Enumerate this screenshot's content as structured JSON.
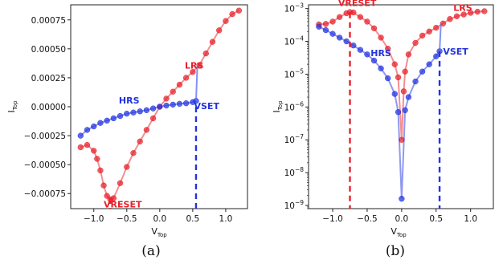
{
  "chart_data": [
    {
      "type": "scatter",
      "caption": "(a)",
      "xlabel": "V",
      "xlabel_sub": "Top",
      "ylabel": "I",
      "ylabel_sub": "Top",
      "xlim": [
        -1.35,
        1.33
      ],
      "ylim": [
        -0.00088,
        0.00088
      ],
      "yscale": "linear",
      "grid": false,
      "xticks": [
        -1.0,
        -0.5,
        0.0,
        0.5,
        1.0
      ],
      "xtick_labels": [
        "−1.0",
        "−0.5",
        "0.0",
        "0.5",
        "1.0"
      ],
      "yticks": [
        -0.00075,
        -0.0005,
        -0.00025,
        0,
        0.00025,
        0.0005,
        0.00075
      ],
      "ytick_labels": [
        "−0.00075",
        "−0.00050",
        "−0.00025",
        "0.00000",
        "0.00025",
        "0.00050",
        "0.00075"
      ],
      "series": [
        {
          "name": "LRS",
          "color": "#e8202a",
          "x": [
            -1.2,
            -1.1,
            -1.0,
            -0.95,
            -0.9,
            -0.85,
            -0.8,
            -0.75,
            -0.7,
            -0.6,
            -0.5,
            -0.4,
            -0.3,
            -0.2,
            -0.1,
            0.0,
            0.1,
            0.2,
            0.3,
            0.4,
            0.5,
            0.6,
            0.7,
            0.8,
            0.9,
            1.0,
            1.1,
            1.2
          ],
          "y": [
            -0.00035,
            -0.00033,
            -0.00038,
            -0.00045,
            -0.00055,
            -0.00068,
            -0.00077,
            -0.0008,
            -0.00079,
            -0.00066,
            -0.00052,
            -0.0004,
            -0.0003,
            -0.0002,
            -0.0001,
            0.0,
            7e-05,
            0.00013,
            0.00019,
            0.00025,
            0.0003,
            0.00036,
            0.00046,
            0.00056,
            0.00066,
            0.00074,
            0.0008,
            0.00083
          ]
        },
        {
          "name": "HRS",
          "color": "#2233e0",
          "x": [
            -1.2,
            -1.1,
            -1.0,
            -0.9,
            -0.8,
            -0.7,
            -0.6,
            -0.5,
            -0.4,
            -0.3,
            -0.2,
            -0.1,
            0.0,
            0.1,
            0.2,
            0.3,
            0.4,
            0.5,
            0.55
          ],
          "y": [
            -0.00025,
            -0.0002,
            -0.00017,
            -0.00014,
            -0.00012,
            -0.0001,
            -8e-05,
            -6e-05,
            -5e-05,
            -4e-05,
            -3e-05,
            -1.5e-05,
            0.0,
            1e-05,
            1.8e-05,
            2.5e-05,
            3e-05,
            4e-05,
            5e-05
          ]
        }
      ],
      "jump": {
        "x": [
          0.55,
          0.57
        ],
        "y": [
          5e-05,
          0.00035
        ]
      },
      "annotations": [
        {
          "text": "LRS",
          "color": "#e8202a",
          "x": 0.38,
          "y": 0.00033
        },
        {
          "text": "HRS",
          "color": "#2233e0",
          "x": -0.62,
          "y": 2.8e-05
        },
        {
          "text": "VSET",
          "color": "#2233e0",
          "x": 0.52,
          "y": -2e-05
        },
        {
          "text": "VRESET",
          "color": "#e8202a",
          "x": -0.85,
          "y": -0.00087
        }
      ],
      "vlines": [
        {
          "x": 0.55,
          "y_from": 0.0,
          "y_to": -0.00088,
          "color": "#2233e0"
        },
        {
          "x": -0.75,
          "y_from": -0.00079,
          "y_to": -0.00088,
          "color": "#e8202a"
        }
      ]
    },
    {
      "type": "scatter",
      "caption": "(b)",
      "xlabel": "V",
      "xlabel_sub": "Top",
      "ylabel": "I",
      "ylabel_sub": "Top",
      "xlim": [
        -1.35,
        1.33
      ],
      "ylim": [
        8e-10,
        0.0013
      ],
      "yscale": "log",
      "grid": false,
      "xticks": [
        -1.0,
        -0.5,
        0.0,
        0.5,
        1.0
      ],
      "xtick_labels": [
        "−1.0",
        "−0.5",
        "0.0",
        "0.5",
        "1.0"
      ],
      "yticks": [
        -9,
        -8,
        -7,
        -6,
        -5,
        -4,
        -3
      ],
      "ytick_bases": [
        "10",
        "10",
        "10",
        "10",
        "10",
        "10",
        "10"
      ],
      "ytick_exps": [
        "−9",
        "−8",
        "−7",
        "−6",
        "−5",
        "−4",
        "−3"
      ],
      "series": [
        {
          "name": "LRS",
          "color": "#e8202a",
          "x": [
            -1.2,
            -1.1,
            -1.0,
            -0.9,
            -0.8,
            -0.75,
            -0.7,
            -0.6,
            -0.5,
            -0.4,
            -0.3,
            -0.2,
            -0.1,
            -0.05,
            0.0,
            0.03,
            0.05,
            0.1,
            0.2,
            0.3,
            0.4,
            0.5,
            0.6,
            0.7,
            0.8,
            0.9,
            1.0,
            1.1,
            1.2
          ],
          "y": [
            0.00033,
            0.00034,
            0.0004,
            0.00055,
            0.00072,
            0.00078,
            0.00076,
            0.00055,
            0.0004,
            0.00025,
            0.00013,
            6e-05,
            2e-05,
            8e-06,
            1e-07,
            3e-06,
            1.2e-05,
            4e-05,
            9e-05,
            0.00015,
            0.0002,
            0.00026,
            0.00035,
            0.00048,
            0.00058,
            0.00066,
            0.00074,
            0.0008,
            0.00083
          ]
        },
        {
          "name": "HRS",
          "color": "#2233e0",
          "x": [
            -1.2,
            -1.1,
            -1.0,
            -0.9,
            -0.8,
            -0.7,
            -0.6,
            -0.5,
            -0.4,
            -0.3,
            -0.2,
            -0.1,
            -0.05,
            0.0,
            0.05,
            0.1,
            0.2,
            0.3,
            0.4,
            0.5,
            0.55
          ],
          "y": [
            0.00028,
            0.00022,
            0.00017,
            0.00013,
            0.0001,
            7.5e-05,
            5.5e-05,
            4e-05,
            2.6e-05,
            1.5e-05,
            7.5e-06,
            2.5e-06,
            7e-07,
            1.6e-09,
            8e-07,
            2e-06,
            6e-06,
            1.2e-05,
            2e-05,
            3.5e-05,
            5e-05
          ]
        }
      ],
      "jump": {
        "x": [
          0.55,
          0.57
        ],
        "y": [
          5e-05,
          0.00035
        ]
      },
      "annotations": [
        {
          "text": "VRESET",
          "color": "#e8202a",
          "x": -0.92,
          "y": 0.0012
        },
        {
          "text": "LRS",
          "color": "#e8202a",
          "x": 0.75,
          "y": 0.00085
        },
        {
          "text": "HRS",
          "color": "#2233e0",
          "x": -0.45,
          "y": 3.5e-05
        },
        {
          "text": "VSET",
          "color": "#2233e0",
          "x": 0.6,
          "y": 4e-05
        }
      ],
      "vlines": [
        {
          "x": -0.75,
          "y_from": 0.00075,
          "y_to": 8e-10,
          "color": "#e8202a"
        },
        {
          "x": 0.55,
          "y_from": 5e-05,
          "y_to": 8e-10,
          "color": "#2233e0"
        }
      ]
    }
  ]
}
